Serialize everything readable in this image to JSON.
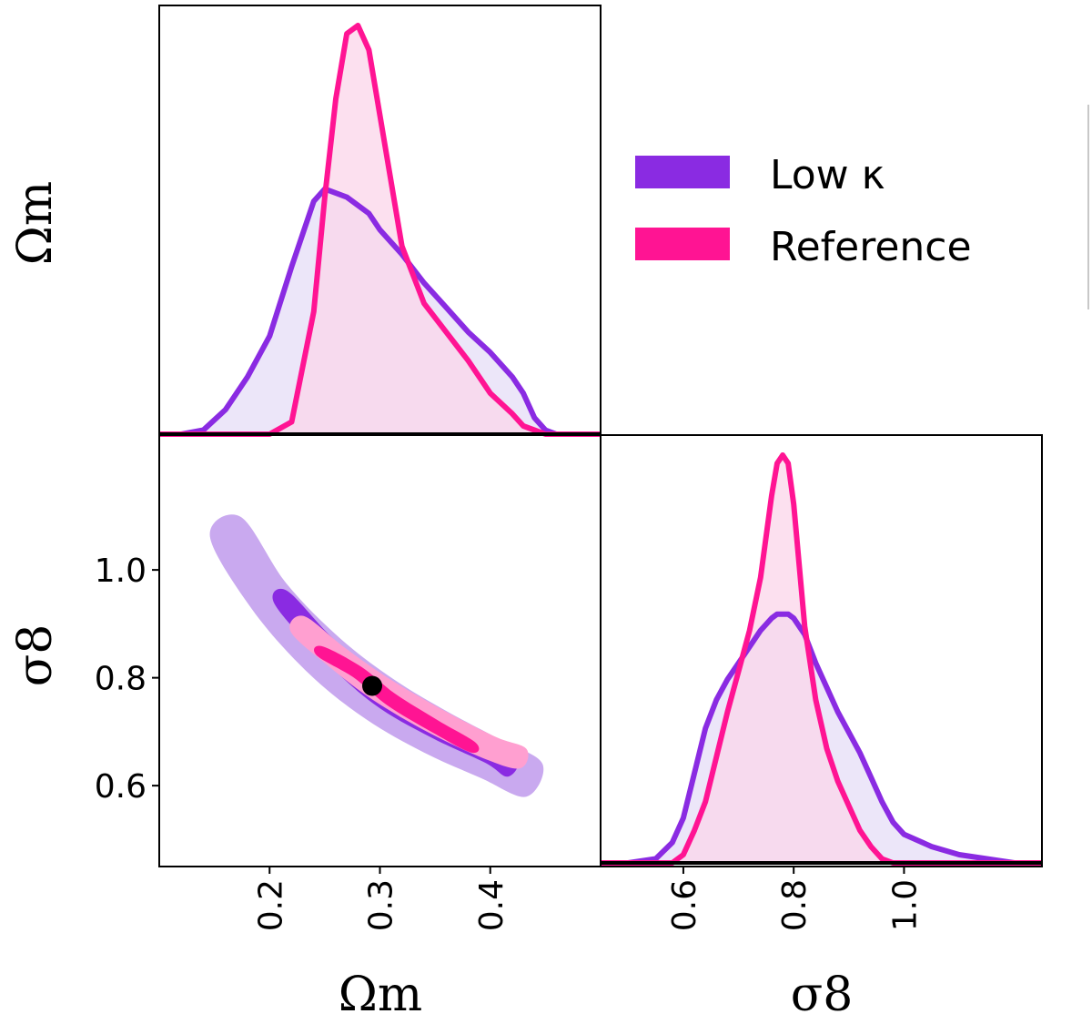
{
  "colors": {
    "low_kappa": "#8a2be2",
    "low_kappa_fill": "#e6ddf7",
    "low_kappa_contour_outer": "#c9a9ef",
    "reference": "#ff1493",
    "reference_fill": "#fbd6ea",
    "reference_contour_outer": "#ff9fd0",
    "overlap_fill": "#efd0ea",
    "truth_marker": "#000000"
  },
  "legend": {
    "entries": [
      {
        "label": "Low κ",
        "color": "#8a2be2"
      },
      {
        "label": "Reference",
        "color": "#ff1493"
      }
    ],
    "placement": "top-right"
  },
  "labels": {
    "row1_ylabel": "Ωm",
    "row2_ylabel": "σ8",
    "col1_xlabel": "Ωm",
    "col2_xlabel": "σ8"
  },
  "chart_data": [
    {
      "type": "line",
      "panel": "marginal-omega-m",
      "xlabel": "",
      "ylabel": "Ωm",
      "xlim": [
        0.1,
        0.5
      ],
      "x": [
        0.1,
        0.12,
        0.14,
        0.16,
        0.18,
        0.2,
        0.22,
        0.24,
        0.25,
        0.26,
        0.27,
        0.28,
        0.29,
        0.3,
        0.32,
        0.34,
        0.36,
        0.38,
        0.4,
        0.42,
        0.43,
        0.44,
        0.45,
        0.46,
        0.48,
        0.5
      ],
      "series": [
        {
          "name": "Low κ",
          "values": [
            0,
            0,
            0.01,
            0.06,
            0.14,
            0.24,
            0.41,
            0.57,
            0.6,
            0.59,
            0.58,
            0.56,
            0.54,
            0.5,
            0.44,
            0.37,
            0.31,
            0.25,
            0.2,
            0.14,
            0.1,
            0.04,
            0.01,
            0,
            0,
            0
          ]
        },
        {
          "name": "Reference",
          "values": [
            0,
            0,
            0,
            0,
            0,
            0,
            0.03,
            0.3,
            0.58,
            0.82,
            0.98,
            1.0,
            0.94,
            0.78,
            0.46,
            0.32,
            0.25,
            0.18,
            0.1,
            0.05,
            0.02,
            0.01,
            0,
            0,
            0,
            0
          ]
        }
      ]
    },
    {
      "type": "scatter",
      "panel": "joint-omega-m-sigma8",
      "xlabel": "Ωm",
      "ylabel": "σ8",
      "xlim": [
        0.1,
        0.5
      ],
      "ylim": [
        0.45,
        1.25
      ],
      "xticks": [
        "0.2",
        "0.3",
        "0.4"
      ],
      "yticks": [
        "0.6",
        "0.8",
        "1.0"
      ],
      "truth_point": {
        "x": 0.293,
        "y": 0.785
      },
      "contours": [
        {
          "name": "Low κ",
          "level": "outer",
          "ridge": [
            [
              0.16,
              1.08
            ],
            [
              0.2,
              0.95
            ],
            [
              0.25,
              0.84
            ],
            [
              0.3,
              0.76
            ],
            [
              0.35,
              0.7
            ],
            [
              0.4,
              0.65
            ],
            [
              0.44,
              0.61
            ]
          ],
          "halfwidth": 0.045
        },
        {
          "name": "Low κ",
          "level": "inner",
          "ridge": [
            [
              0.21,
              0.95
            ],
            [
              0.25,
              0.86
            ],
            [
              0.3,
              0.77
            ],
            [
              0.35,
              0.71
            ],
            [
              0.4,
              0.66
            ],
            [
              0.42,
              0.63
            ]
          ],
          "halfwidth": 0.022
        },
        {
          "name": "Reference",
          "level": "outer",
          "ridge": [
            [
              0.225,
              0.9
            ],
            [
              0.26,
              0.84
            ],
            [
              0.3,
              0.78
            ],
            [
              0.35,
              0.72
            ],
            [
              0.4,
              0.67
            ],
            [
              0.43,
              0.65
            ]
          ],
          "halfwidth": 0.025
        },
        {
          "name": "Reference",
          "level": "inner",
          "ridge": [
            [
              0.245,
              0.85
            ],
            [
              0.28,
              0.81
            ],
            [
              0.31,
              0.76
            ],
            [
              0.35,
              0.71
            ],
            [
              0.385,
              0.67
            ]
          ],
          "halfwidth": 0.013
        }
      ]
    },
    {
      "type": "line",
      "panel": "marginal-sigma8",
      "xlabel": "σ8",
      "ylabel": "",
      "xlim": [
        0.45,
        1.25
      ],
      "xticks": [
        "0.6",
        "0.8",
        "1.0"
      ],
      "x": [
        0.45,
        0.5,
        0.55,
        0.58,
        0.6,
        0.62,
        0.64,
        0.66,
        0.68,
        0.7,
        0.72,
        0.74,
        0.76,
        0.77,
        0.78,
        0.79,
        0.8,
        0.82,
        0.84,
        0.86,
        0.88,
        0.9,
        0.92,
        0.94,
        0.96,
        0.98,
        1.0,
        1.05,
        1.1,
        1.15,
        1.2,
        1.25
      ],
      "series": [
        {
          "name": "Low κ",
          "values": [
            0,
            0,
            0.01,
            0.05,
            0.11,
            0.22,
            0.33,
            0.4,
            0.45,
            0.49,
            0.53,
            0.57,
            0.6,
            0.61,
            0.61,
            0.61,
            0.6,
            0.56,
            0.49,
            0.43,
            0.37,
            0.32,
            0.27,
            0.21,
            0.15,
            0.1,
            0.07,
            0.04,
            0.02,
            0.01,
            0,
            0
          ]
        },
        {
          "name": "Reference",
          "values": [
            0,
            0,
            0,
            0,
            0.02,
            0.08,
            0.15,
            0.26,
            0.37,
            0.47,
            0.57,
            0.7,
            0.9,
            0.98,
            1.0,
            0.98,
            0.88,
            0.58,
            0.4,
            0.28,
            0.2,
            0.14,
            0.08,
            0.04,
            0.01,
            0,
            0,
            0,
            0,
            0,
            0,
            0
          ]
        }
      ]
    }
  ]
}
